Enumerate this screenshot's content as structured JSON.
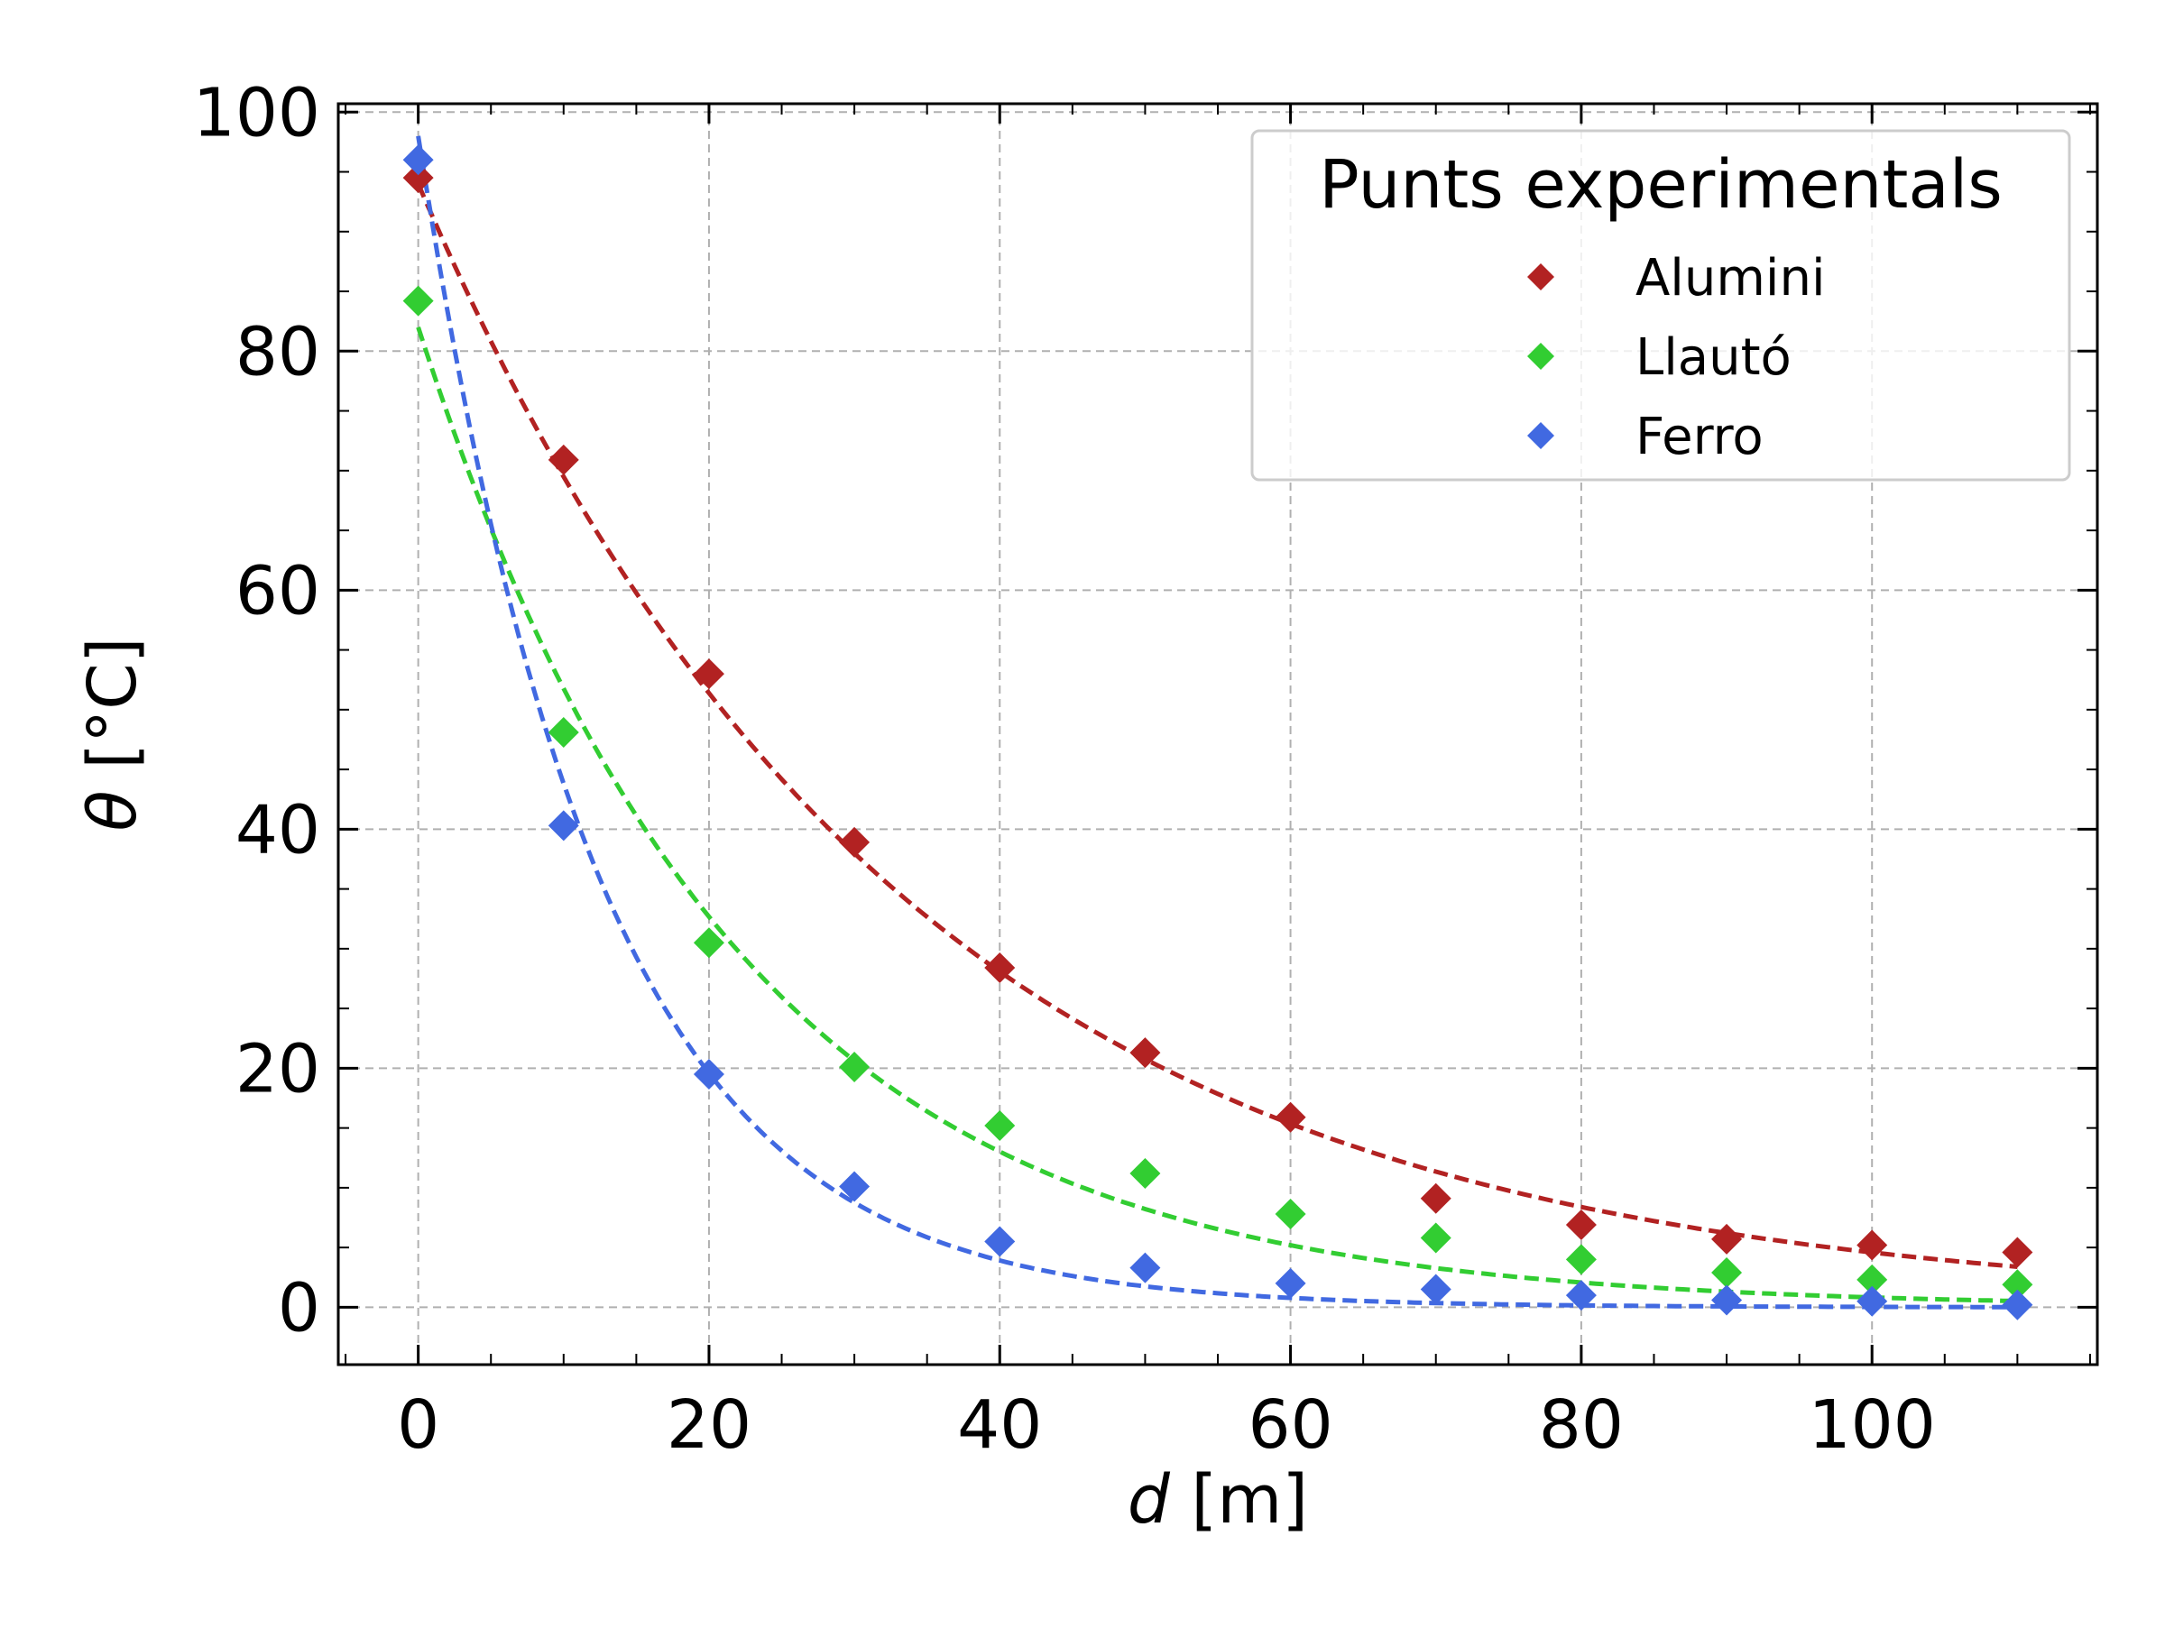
{
  "chart_data": {
    "type": "scatter",
    "xlabel": {
      "var": "d",
      "unit": " [m]"
    },
    "ylabel": {
      "var": "θ",
      "unit": " [°C]"
    },
    "xlim": [
      -5.5,
      115.5
    ],
    "ylim": [
      -4.8,
      100.7
    ],
    "xticks": [
      0,
      20,
      40,
      60,
      80,
      100
    ],
    "yticks": [
      0,
      20,
      40,
      60,
      80,
      100
    ],
    "xtick_labels": [
      "0",
      "20",
      "40",
      "60",
      "80",
      "100"
    ],
    "ytick_labels": [
      "0",
      "20",
      "40",
      "60",
      "80",
      "100"
    ],
    "grid": true,
    "legend": {
      "title": "Punts experimentals",
      "placement": "top-right"
    },
    "series": [
      {
        "name": "Alumini",
        "color": "#b22222",
        "marker": "diamond",
        "x": [
          0,
          10,
          20,
          30,
          40,
          50,
          60,
          70,
          80,
          90,
          100,
          110
        ],
        "y": [
          94.5,
          70.9,
          53.0,
          38.9,
          28.4,
          21.3,
          15.9,
          9.1,
          6.9,
          5.7,
          5.2,
          4.6
        ],
        "fit": {
          "type": "exponential",
          "a": 94.0,
          "b": 0.0302
        }
      },
      {
        "name": "Llautó",
        "color": "#32cd32",
        "marker": "diamond",
        "x": [
          0,
          10,
          20,
          30,
          40,
          50,
          60,
          70,
          80,
          90,
          100,
          110
        ],
        "y": [
          84.2,
          48.1,
          30.5,
          20.1,
          15.2,
          11.2,
          7.8,
          5.8,
          4.0,
          2.9,
          2.3,
          1.9
        ],
        "fit": {
          "type": "exponential",
          "a": 82.0,
          "b": 0.046
        }
      },
      {
        "name": "Ferro",
        "color": "#4169e1",
        "marker": "diamond",
        "x": [
          0,
          10,
          20,
          30,
          40,
          50,
          60,
          70,
          80,
          90,
          100,
          110
        ],
        "y": [
          96.0,
          40.3,
          19.5,
          10.1,
          5.5,
          3.3,
          2.0,
          1.5,
          1.0,
          0.6,
          0.5,
          0.2
        ],
        "fit": {
          "type": "exponential",
          "a": 98.0,
          "b": 0.0805
        }
      }
    ]
  }
}
